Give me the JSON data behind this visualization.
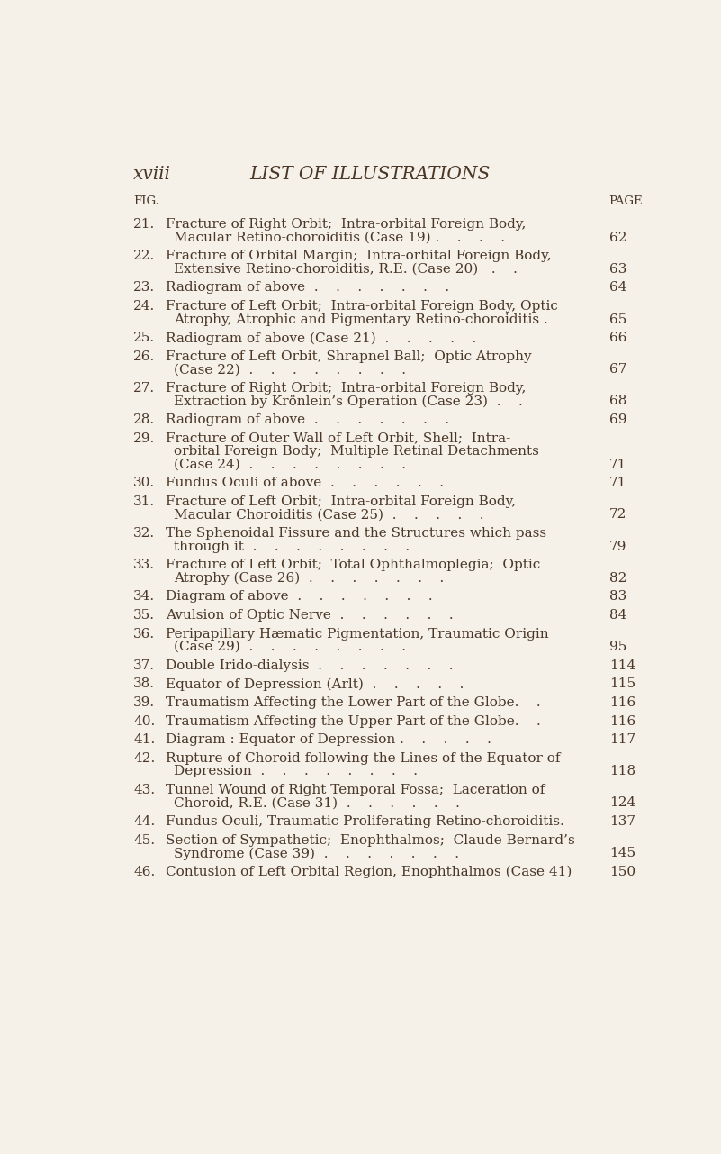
{
  "bg_color": "#f5f0e8",
  "text_color": "#4a3728",
  "page_number_color": "#4a3728",
  "header_left": "xviii",
  "header_center": "LIST OF ILLUSTRATIONS",
  "header_fig": "FIG.",
  "header_page": "PAGE",
  "entries": [
    {
      "num": "21.",
      "line1": "Fracture of Right Orbit;  Intra-orbital Foreign Body,",
      "line2": "Macular Retino-choroiditis (Case 19) .    .    .    .",
      "page": "62"
    },
    {
      "num": "22.",
      "line1": "Fracture of Orbital Margin;  Intra-orbital Foreign Body,",
      "line2": "Extensive Retino-choroiditis, R.E. (Case 20)   .    .",
      "page": "63"
    },
    {
      "num": "23.",
      "line1": "Radiogram of above  .    .    .    .    .    .    .",
      "line2": null,
      "page": "64"
    },
    {
      "num": "24.",
      "line1": "Fracture of Left Orbit;  Intra-orbital Foreign Body, Optic",
      "line2": "Atrophy, Atrophic and Pigmentary Retino-choroiditis .",
      "page": "65"
    },
    {
      "num": "25.",
      "line1": "Radiogram of above (Case 21)  .    .    .    .    .",
      "line2": null,
      "page": "66"
    },
    {
      "num": "26.",
      "line1": "Fracture of Left Orbit, Shrapnel Ball;  Optic Atrophy",
      "line2": "(Case 22)  .    .    .    .    .    .    .    .",
      "page": "67"
    },
    {
      "num": "27.",
      "line1": "Fracture of Right Orbit;  Intra-orbital Foreign Body,",
      "line2": "Extraction by Krönlein’s Operation (Case 23)  .    .",
      "page": "68"
    },
    {
      "num": "28.",
      "line1": "Radiogram of above  .    .    .    .    .    .    .",
      "line2": null,
      "page": "69"
    },
    {
      "num": "29.",
      "line1": "Fracture of Outer Wall of Left Orbit, Shell;  Intra-",
      "line2": "orbital Foreign Body;  Multiple Retinal Detachments",
      "line3": "(Case 24)  .    .    .    .    .    .    .    .",
      "page": "71"
    },
    {
      "num": "30.",
      "line1": "Fundus Oculi of above  .    .    .    .    .    .",
      "line2": null,
      "page": "71"
    },
    {
      "num": "31.",
      "line1": "Fracture of Left Orbit;  Intra-orbital Foreign Body,",
      "line2": "Macular Choroiditis (Case 25)  .    .    .    .    .",
      "page": "72"
    },
    {
      "num": "32.",
      "line1": "The Sphenoidal Fissure and the Structures which pass",
      "line2": "through it  .    .    .    .    .    .    .    .",
      "page": "79"
    },
    {
      "num": "33.",
      "line1": "Fracture of Left Orbit;  Total Ophthalmoplegia;  Optic",
      "line2": "Atrophy (Case 26)  .    .    .    .    .    .    .",
      "page": "82"
    },
    {
      "num": "34.",
      "line1": "Diagram of above  .    .    .    .    .    .    .",
      "line2": null,
      "page": "83"
    },
    {
      "num": "35.",
      "line1": "Avulsion of Optic Nerve  .    .    .    .    .    .",
      "line2": null,
      "page": "84"
    },
    {
      "num": "36.",
      "line1": "Peripapillary Hæmatic Pigmentation, Traumatic Origin",
      "line2": "(Case 29)  .    .    .    .    .    .    .    .",
      "page": "95"
    },
    {
      "num": "37.",
      "line1": "Double Irido-dialysis  .    .    .    .    .    .    .",
      "line2": null,
      "page": "114"
    },
    {
      "num": "38.",
      "line1": "Equator of Depression (Arlt)  .    .    .    .    .",
      "line2": null,
      "page": "115"
    },
    {
      "num": "39.",
      "line1": "Traumatism Affecting the Lower Part of the Globe.    .",
      "line2": null,
      "page": "116"
    },
    {
      "num": "40.",
      "line1": "Traumatism Affecting the Upper Part of the Globe.    .",
      "line2": null,
      "page": "116"
    },
    {
      "num": "41.",
      "line1": "Diagram : Equator of Depression .    .    .    .    .",
      "line2": null,
      "page": "117"
    },
    {
      "num": "42.",
      "line1": "Rupture of Choroid following the Lines of the Equator of",
      "line2": "Depression  .    .    .    .    .    .    .    .",
      "page": "118"
    },
    {
      "num": "43.",
      "line1": "Tunnel Wound of Right Temporal Fossa;  Laceration of",
      "line2": "Choroid, R.E. (Case 31)  .    .    .    .    .    .",
      "page": "124"
    },
    {
      "num": "44.",
      "line1": "Fundus Oculi, Traumatic Proliferating Retino-choroiditis.",
      "line2": null,
      "page": "137"
    },
    {
      "num": "45.",
      "line1": "Section of Sympathetic;  Enophthalmos;  Claude Bernard’s",
      "line2": "Syndrome (Case 39)  .    .    .    .    .    .    .",
      "page": "145"
    },
    {
      "num": "46.",
      "line1": "Contusion of Left Orbital Region, Enophthalmos (Case 41)",
      "line2": null,
      "page": "150"
    }
  ]
}
